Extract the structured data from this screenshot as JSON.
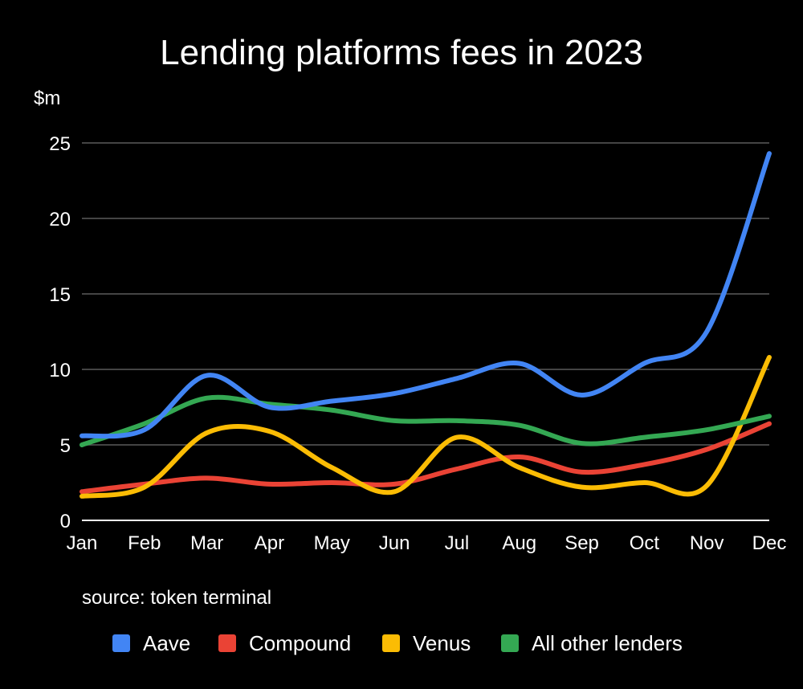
{
  "chart_data": {
    "type": "line",
    "title": "Lending platforms fees in 2023",
    "ylabel": "$m",
    "xlabel": "",
    "categories": [
      "Jan",
      "Feb",
      "Mar",
      "Apr",
      "May",
      "Jun",
      "Jul",
      "Aug",
      "Sep",
      "Oct",
      "Nov",
      "Dec"
    ],
    "ylim": [
      0,
      25
    ],
    "yticks": [
      "0",
      "5",
      "10",
      "15",
      "20",
      "25"
    ],
    "grid": true,
    "legend_position": "bottom",
    "source": "source: token terminal",
    "series": [
      {
        "name": "Aave",
        "color": "#4285F4",
        "values": [
          5.6,
          6.0,
          9.6,
          7.5,
          7.9,
          8.4,
          9.4,
          10.4,
          8.3,
          10.4,
          12.5,
          24.3
        ]
      },
      {
        "name": "Compound",
        "color": "#EA4335",
        "values": [
          1.9,
          2.4,
          2.8,
          2.4,
          2.5,
          2.4,
          3.4,
          4.2,
          3.2,
          3.7,
          4.7,
          6.4
        ]
      },
      {
        "name": "Venus",
        "color": "#FBBC04",
        "values": [
          1.6,
          2.2,
          5.8,
          5.9,
          3.5,
          1.9,
          5.5,
          3.5,
          2.2,
          2.5,
          2.3,
          10.8
        ]
      },
      {
        "name": "All other lenders",
        "color": "#34A853",
        "values": [
          5.0,
          6.4,
          8.1,
          7.7,
          7.3,
          6.6,
          6.6,
          6.3,
          5.1,
          5.5,
          6.0,
          6.9
        ]
      }
    ]
  }
}
